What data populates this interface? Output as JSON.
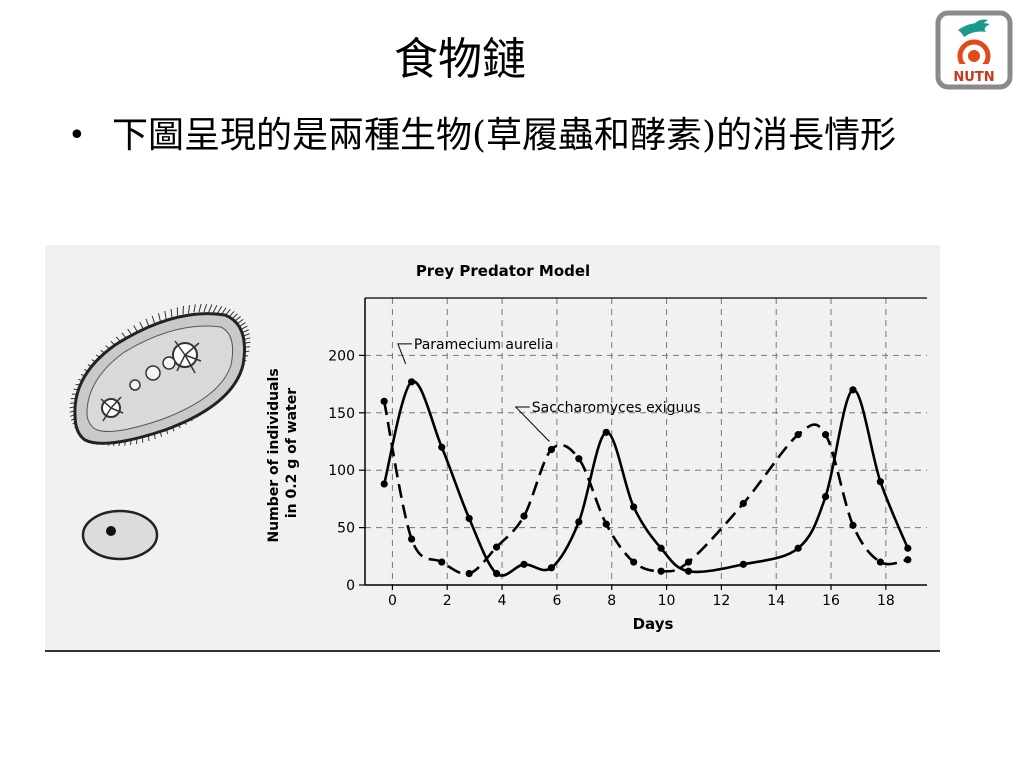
{
  "slide": {
    "title": "食物鏈",
    "bullet": "下圖呈現的是兩種生物(草履蟲和酵素)的消長情形"
  },
  "logo": {
    "text": "NUTN",
    "icon": "bird-sun-logo-icon",
    "colors": {
      "frame": "#8a8a8a",
      "bird": "#1a9a8a",
      "sun": "#e24a1a",
      "text": "#c8371a"
    }
  },
  "chart_data": {
    "type": "line",
    "title": "Prey Predator Model",
    "xlabel": "Days",
    "ylabel": "Number of individuals in 0.2 g of water",
    "ylabel_lines": [
      "Number of individuals",
      "in 0.2 g of water"
    ],
    "xlim": [
      -1,
      19.5
    ],
    "ylim": [
      0,
      250
    ],
    "x_ticks": [
      0,
      2,
      4,
      6,
      8,
      10,
      12,
      14,
      16,
      18
    ],
    "x_tick_labels": [
      "0",
      "2",
      "4",
      "6",
      "8",
      "10",
      "12",
      "14",
      "16",
      "18"
    ],
    "y_ticks": [
      0,
      50,
      100,
      150,
      200
    ],
    "y_tick_labels": [
      "0",
      "50",
      "100",
      "150",
      "200"
    ],
    "grid": true,
    "series": [
      {
        "name": "Paramecium aurelia",
        "style": "solid",
        "color": "#000000",
        "points": [
          [
            -0.3,
            88
          ],
          [
            0.7,
            177
          ],
          [
            1.8,
            120
          ],
          [
            2.8,
            58
          ],
          [
            3.8,
            10
          ],
          [
            4.8,
            18
          ],
          [
            5.8,
            15
          ],
          [
            6.8,
            55
          ],
          [
            7.8,
            133
          ],
          [
            8.8,
            68
          ],
          [
            9.8,
            32
          ],
          [
            10.8,
            12
          ],
          [
            12.8,
            18
          ],
          [
            14.8,
            32
          ],
          [
            15.8,
            77
          ],
          [
            16.8,
            170
          ],
          [
            17.8,
            90
          ],
          [
            18.8,
            32
          ]
        ],
        "label_x": 0.2,
        "label_y": 210
      },
      {
        "name": "Saccharomyces exiguus",
        "style": "dashed",
        "color": "#000000",
        "points": [
          [
            -0.3,
            160
          ],
          [
            0.7,
            40
          ],
          [
            1.8,
            20
          ],
          [
            2.8,
            10
          ],
          [
            3.8,
            33
          ],
          [
            4.8,
            60
          ],
          [
            5.8,
            118
          ],
          [
            6.8,
            110
          ],
          [
            7.8,
            53
          ],
          [
            8.8,
            20
          ],
          [
            9.8,
            12
          ],
          [
            10.8,
            20
          ],
          [
            12.8,
            71
          ],
          [
            14.8,
            131
          ],
          [
            15.8,
            131
          ],
          [
            16.8,
            52
          ],
          [
            17.8,
            20
          ],
          [
            18.8,
            22
          ]
        ],
        "label_x": 4.5,
        "label_y": 155
      }
    ]
  },
  "illustrations": {
    "paramecium": "paramecium-illustration",
    "yeast": "yeast-cell-illustration"
  }
}
